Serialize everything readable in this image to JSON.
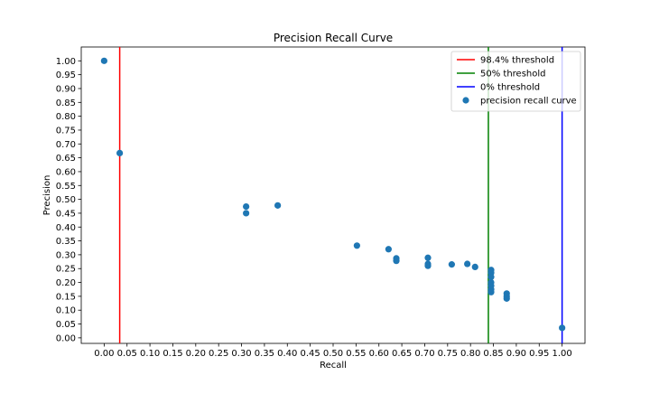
{
  "chart_data": {
    "type": "scatter",
    "title": "Precision Recall Curve",
    "xlabel": "Recall",
    "ylabel": "Precision",
    "xlim": [
      -0.05,
      1.05
    ],
    "ylim": [
      -0.02,
      1.05
    ],
    "xticks": [
      "0.00",
      "0.05",
      "0.10",
      "0.15",
      "0.20",
      "0.25",
      "0.30",
      "0.35",
      "0.40",
      "0.45",
      "0.50",
      "0.55",
      "0.60",
      "0.65",
      "0.70",
      "0.75",
      "0.80",
      "0.85",
      "0.90",
      "0.95",
      "1.00"
    ],
    "yticks": [
      "0.00",
      "0.05",
      "0.10",
      "0.15",
      "0.20",
      "0.25",
      "0.30",
      "0.35",
      "0.40",
      "0.45",
      "0.50",
      "0.55",
      "0.60",
      "0.65",
      "0.70",
      "0.75",
      "0.80",
      "0.85",
      "0.90",
      "0.95",
      "1.00"
    ],
    "legend_position": "top-right",
    "grid": false,
    "vlines": [
      {
        "name": "98.4% threshold",
        "x": 0.034,
        "color": "#ff0000"
      },
      {
        "name": "50% threshold",
        "x": 0.839,
        "color": "#008000"
      },
      {
        "name": "0% threshold",
        "x": 1.0,
        "color": "#0000ff"
      }
    ],
    "series": [
      {
        "name": "precision recall curve",
        "color": "#1f77b4",
        "points": [
          [
            0.0,
            1.0
          ],
          [
            0.034,
            0.667
          ],
          [
            0.31,
            0.474
          ],
          [
            0.31,
            0.45
          ],
          [
            0.379,
            0.478
          ],
          [
            0.552,
            0.333
          ],
          [
            0.621,
            0.32
          ],
          [
            0.638,
            0.287
          ],
          [
            0.638,
            0.278
          ],
          [
            0.707,
            0.289
          ],
          [
            0.707,
            0.267
          ],
          [
            0.707,
            0.26
          ],
          [
            0.759,
            0.265
          ],
          [
            0.793,
            0.267
          ],
          [
            0.81,
            0.256
          ],
          [
            0.845,
            0.245
          ],
          [
            0.845,
            0.235
          ],
          [
            0.845,
            0.22
          ],
          [
            0.845,
            0.2
          ],
          [
            0.845,
            0.188
          ],
          [
            0.845,
            0.175
          ],
          [
            0.845,
            0.165
          ],
          [
            0.879,
            0.16
          ],
          [
            0.879,
            0.15
          ],
          [
            0.879,
            0.142
          ],
          [
            1.0,
            0.036
          ]
        ]
      }
    ]
  }
}
